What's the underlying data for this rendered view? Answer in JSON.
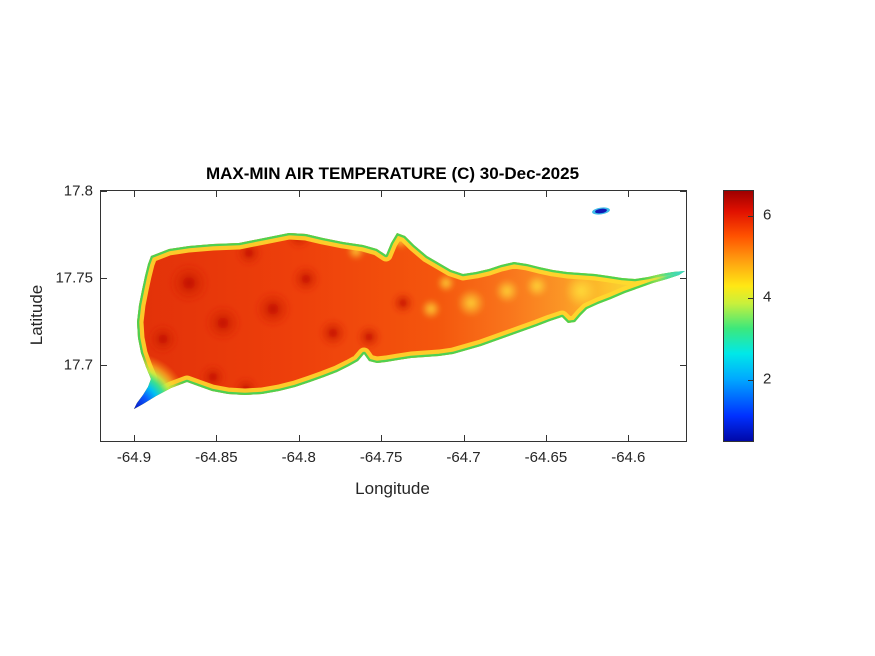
{
  "chart_data": {
    "type": "heatmap",
    "title": "MAX-MIN AIR TEMPERATURE (C) 30-Dec-2025",
    "xlabel": "Longitude",
    "ylabel": "Latitude",
    "xlim": [
      -64.92,
      -64.565
    ],
    "ylim": [
      17.656,
      17.8
    ],
    "x_ticks": [
      -64.9,
      -64.85,
      -64.8,
      -64.75,
      -64.7,
      -64.65,
      -64.6
    ],
    "y_ticks": [
      17.7,
      17.75,
      17.8
    ],
    "grid": false,
    "legend": "colorbar-right",
    "colorbar": {
      "ticks": [
        2,
        4,
        6
      ],
      "clim": [
        0.5,
        6.6
      ]
    },
    "colormap": {
      "name": "jet",
      "stops": [
        {
          "pos": 0.0,
          "color": "#0008A8"
        },
        {
          "pos": 0.1,
          "color": "#0030FF"
        },
        {
          "pos": 0.25,
          "color": "#00AAFF"
        },
        {
          "pos": 0.35,
          "color": "#00E8E8"
        },
        {
          "pos": 0.45,
          "color": "#3CE87C"
        },
        {
          "pos": 0.55,
          "color": "#C8F03C"
        },
        {
          "pos": 0.62,
          "color": "#FFE814"
        },
        {
          "pos": 0.72,
          "color": "#FFA010"
        },
        {
          "pos": 0.82,
          "color": "#FF5200"
        },
        {
          "pos": 0.92,
          "color": "#E01000"
        },
        {
          "pos": 1.0,
          "color": "#9E0000"
        }
      ]
    },
    "field_summary": {
      "units": "C",
      "regions": [
        {
          "area": "western interior",
          "lon": [
            -64.9,
            -64.75
          ],
          "lat": [
            17.69,
            17.77
          ],
          "value_range": [
            5.5,
            6.5
          ]
        },
        {
          "area": "scattered hot spots (dark red), western half",
          "value_range": [
            6.5,
            7.0
          ]
        },
        {
          "area": "eastern peninsula interior",
          "lon": [
            -64.72,
            -64.6
          ],
          "value_range": [
            4.5,
            5.5
          ]
        },
        {
          "area": "east end band (yellow-green)",
          "lon": [
            -64.62,
            -64.57
          ],
          "value_range": [
            3.5,
            4.5
          ]
        },
        {
          "area": "east tip (cyan)",
          "lon": -64.57,
          "lat": 17.755,
          "value_range": [
            1.5,
            3.0
          ]
        },
        {
          "area": "coastal rim all around island",
          "value_range": [
            3.0,
            4.5
          ]
        },
        {
          "area": "southwest tip (blue minimum)",
          "lon": -64.9,
          "lat": 17.68,
          "value_range": [
            0.5,
            2.0
          ]
        },
        {
          "area": "small offshore islet north-east (dark blue)",
          "lon": -64.62,
          "lat": 17.79,
          "value_range": [
            0.5,
            1.0
          ]
        }
      ]
    }
  }
}
